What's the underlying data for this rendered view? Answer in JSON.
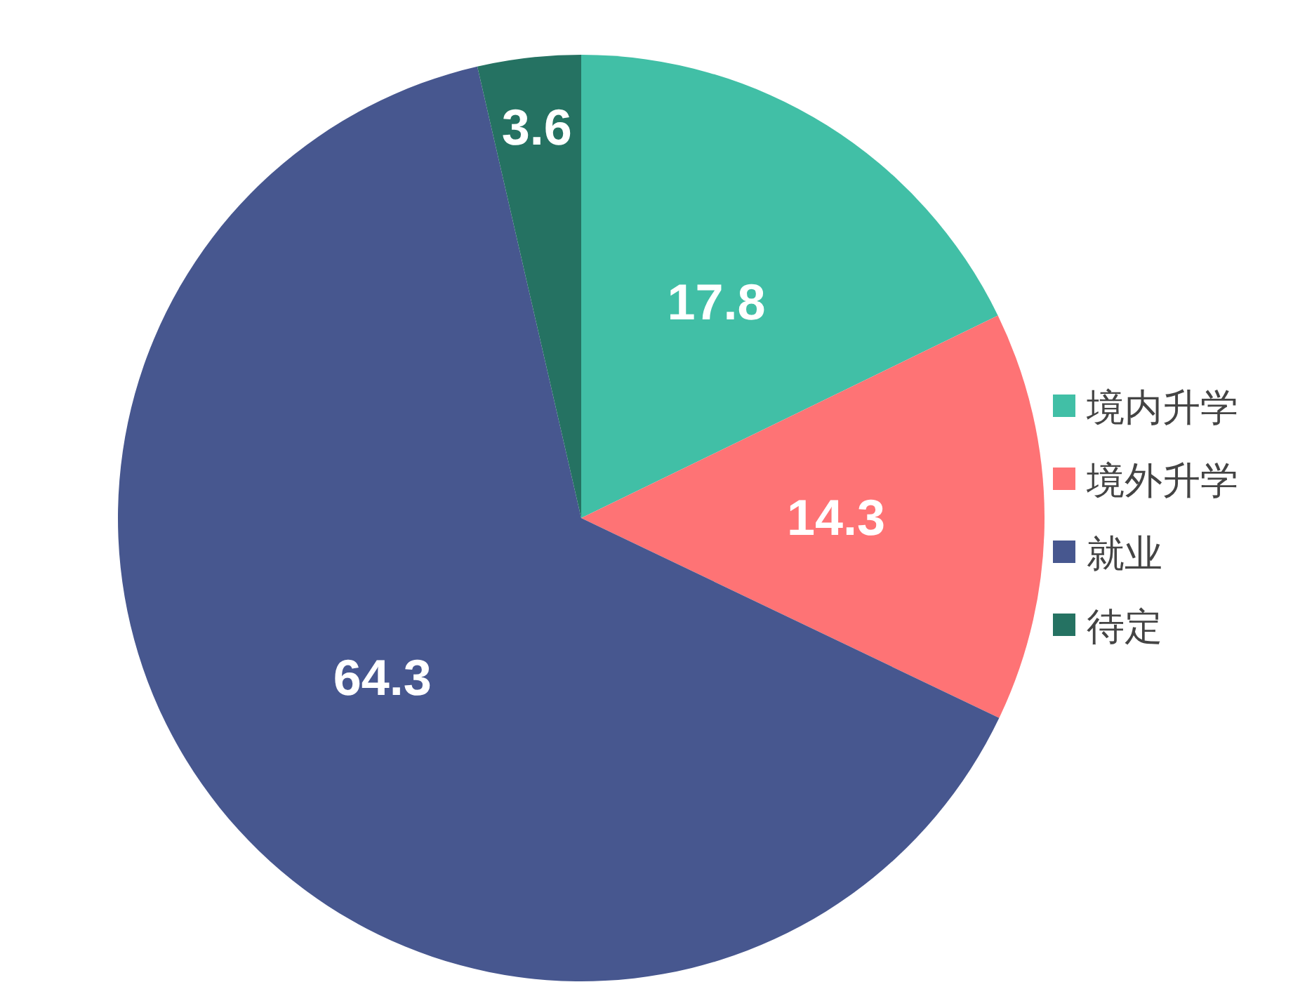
{
  "chart_data": {
    "type": "pie",
    "categories": [
      "境内升学",
      "境外升学",
      "就业",
      "待定"
    ],
    "values": [
      17.8,
      14.3,
      64.3,
      3.6
    ],
    "colors": [
      "#41bfa6",
      "#fe7375",
      "#47578f",
      "#257262"
    ],
    "data_labels": true,
    "legend": "right"
  }
}
